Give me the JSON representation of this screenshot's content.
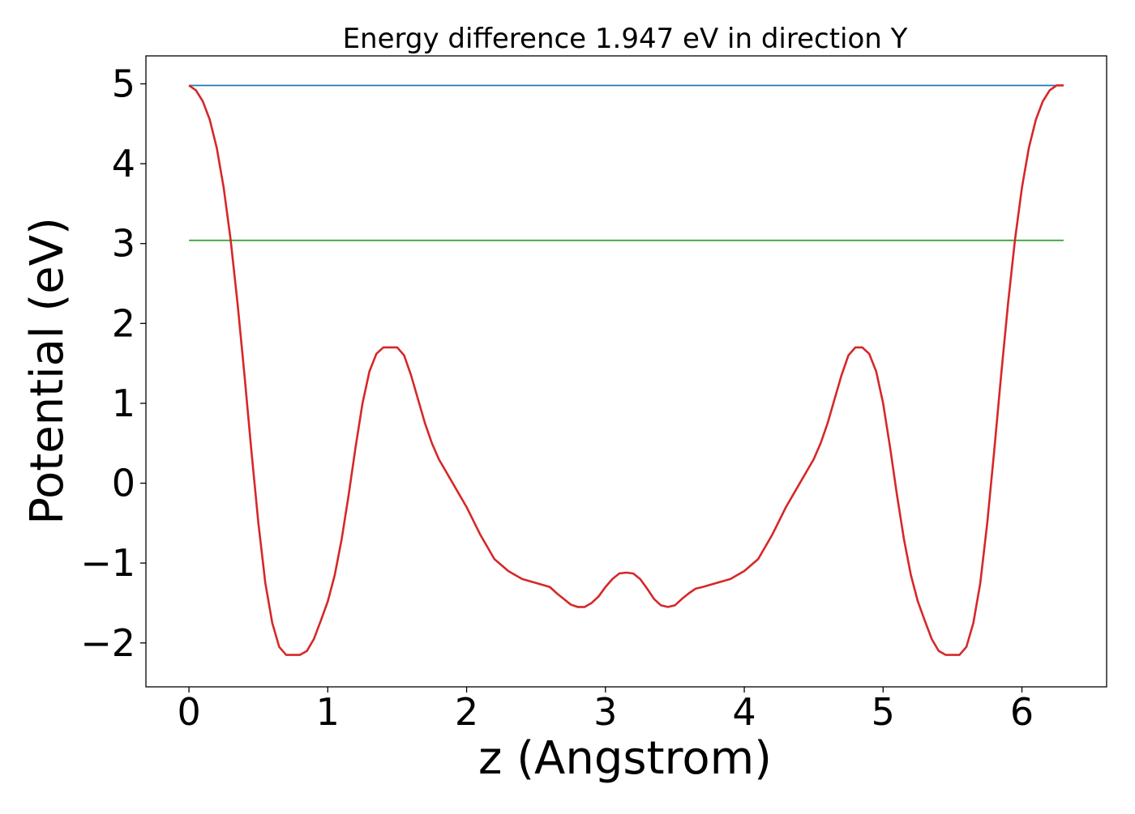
{
  "chart_data": {
    "type": "line",
    "title": "Energy difference 1.947 eV in direction Y",
    "xlabel": "z (Angstrom)",
    "ylabel": "Potential (eV)",
    "xlim": [
      -0.31,
      6.61
    ],
    "ylim": [
      -2.55,
      5.35
    ],
    "x_ticks": [
      0,
      1,
      2,
      3,
      4,
      5,
      6
    ],
    "x_tick_labels": [
      "0",
      "1",
      "2",
      "3",
      "4",
      "5",
      "6"
    ],
    "y_ticks": [
      -2,
      -1,
      0,
      1,
      2,
      3,
      4,
      5
    ],
    "y_tick_labels": [
      "−2",
      "−1",
      "0",
      "1",
      "2",
      "3",
      "4",
      "5"
    ],
    "grid": false,
    "legend": "none",
    "series": [
      {
        "color": "#1f77b4",
        "x": [
          0,
          6.3
        ],
        "y": [
          4.98,
          4.98
        ]
      },
      {
        "color": "#2ca02c",
        "x": [
          0,
          6.3
        ],
        "y": [
          3.04,
          3.04
        ]
      },
      {
        "color": "#d62728",
        "x": [
          0,
          0.05,
          0.1,
          0.15,
          0.2,
          0.25,
          0.3,
          0.35,
          0.4,
          0.45,
          0.5,
          0.55,
          0.6,
          0.65,
          0.7,
          0.75,
          0.8,
          0.85,
          0.9,
          0.95,
          1.0,
          1.05,
          1.1,
          1.15,
          1.2,
          1.25,
          1.3,
          1.35,
          1.4,
          1.45,
          1.5,
          1.55,
          1.6,
          1.65,
          1.7,
          1.75,
          1.8,
          1.85,
          1.9,
          2.0,
          2.1,
          2.2,
          2.3,
          2.4,
          2.5,
          2.6,
          2.65,
          2.7,
          2.75,
          2.8,
          2.85,
          2.9,
          2.95,
          3.0,
          3.05,
          3.1,
          3.15,
          3.2,
          3.25,
          3.3,
          3.35,
          3.4,
          3.45,
          3.5,
          3.55,
          3.6,
          3.65,
          3.7,
          3.8,
          3.9,
          4.0,
          4.1,
          4.2,
          4.3,
          4.4,
          4.45,
          4.5,
          4.55,
          4.6,
          4.65,
          4.7,
          4.75,
          4.8,
          4.85,
          4.9,
          4.95,
          5.0,
          5.05,
          5.1,
          5.15,
          5.2,
          5.25,
          5.3,
          5.35,
          5.4,
          5.45,
          5.5,
          5.55,
          5.6,
          5.65,
          5.7,
          5.75,
          5.8,
          5.85,
          5.9,
          5.95,
          6.0,
          6.05,
          6.1,
          6.15,
          6.2,
          6.25,
          6.3
        ],
        "y": [
          4.98,
          4.92,
          4.78,
          4.55,
          4.2,
          3.7,
          3.05,
          2.25,
          1.35,
          0.4,
          -0.5,
          -1.25,
          -1.75,
          -2.05,
          -2.15,
          -2.15,
          -2.15,
          -2.1,
          -1.95,
          -1.72,
          -1.48,
          -1.15,
          -0.7,
          -0.15,
          0.45,
          1.0,
          1.4,
          1.62,
          1.7,
          1.7,
          1.7,
          1.6,
          1.35,
          1.05,
          0.75,
          0.5,
          0.3,
          0.15,
          0.0,
          -0.3,
          -0.65,
          -0.95,
          -1.1,
          -1.2,
          -1.25,
          -1.3,
          -1.38,
          -1.45,
          -1.52,
          -1.55,
          -1.55,
          -1.5,
          -1.42,
          -1.3,
          -1.2,
          -1.13,
          -1.12,
          -1.13,
          -1.2,
          -1.32,
          -1.45,
          -1.53,
          -1.55,
          -1.53,
          -1.45,
          -1.38,
          -1.32,
          -1.3,
          -1.25,
          -1.2,
          -1.1,
          -0.95,
          -0.65,
          -0.3,
          0.0,
          0.15,
          0.3,
          0.5,
          0.75,
          1.05,
          1.35,
          1.6,
          1.7,
          1.7,
          1.62,
          1.4,
          1.0,
          0.45,
          -0.15,
          -0.7,
          -1.15,
          -1.48,
          -1.72,
          -1.95,
          -2.1,
          -2.15,
          -2.15,
          -2.15,
          -2.05,
          -1.75,
          -1.25,
          -0.5,
          0.4,
          1.35,
          2.25,
          3.05,
          3.7,
          4.2,
          4.55,
          4.78,
          4.92,
          4.98,
          4.98
        ]
      }
    ]
  }
}
